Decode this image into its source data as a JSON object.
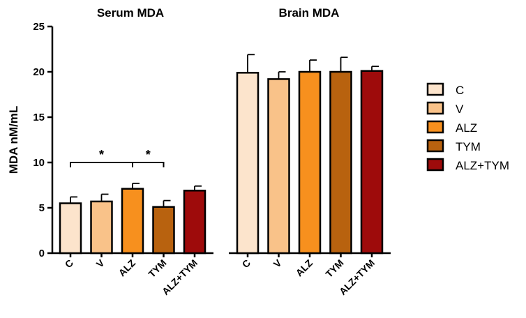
{
  "chart_data": {
    "type": "bar",
    "ylabel": "MDA nM/mL",
    "ylim": [
      0,
      25
    ],
    "yticks": [
      0,
      5,
      10,
      15,
      20,
      25
    ],
    "legend_position": "right",
    "categories": [
      "C",
      "V",
      "ALZ",
      "TYM",
      "ALZ+TYM"
    ],
    "colors": [
      "#FCE4CC",
      "#F9C289",
      "#F7901E",
      "#B8620F",
      "#9E0B0B"
    ],
    "groups": [
      {
        "title": "Serum MDA",
        "values": [
          5.5,
          5.7,
          7.1,
          5.1,
          6.9
        ],
        "errors": [
          0.7,
          0.8,
          0.6,
          0.7,
          0.5
        ]
      },
      {
        "title": "Brain MDA",
        "values": [
          19.9,
          19.2,
          20.0,
          20.0,
          20.1
        ],
        "errors": [
          2.0,
          0.8,
          1.3,
          1.6,
          0.5
        ]
      }
    ],
    "significance": [
      {
        "group": 0,
        "from": 0,
        "to": 2,
        "y": 10.0,
        "label": "*"
      },
      {
        "group": 0,
        "from": 2,
        "to": 3,
        "y": 10.0,
        "label": "*"
      }
    ]
  }
}
